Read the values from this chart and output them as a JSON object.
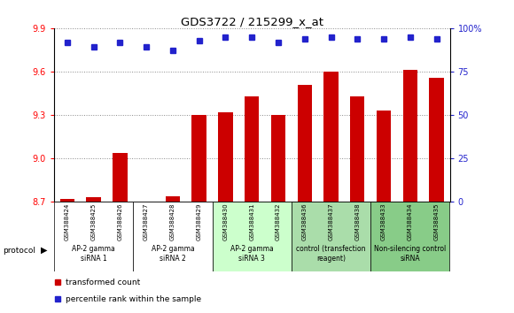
{
  "title": "GDS3722 / 215299_x_at",
  "samples": [
    "GSM388424",
    "GSM388425",
    "GSM388426",
    "GSM388427",
    "GSM388428",
    "GSM388429",
    "GSM388430",
    "GSM388431",
    "GSM388432",
    "GSM388436",
    "GSM388437",
    "GSM388438",
    "GSM388433",
    "GSM388434",
    "GSM388435"
  ],
  "bar_values": [
    8.72,
    8.73,
    9.04,
    8.7,
    8.74,
    9.3,
    9.32,
    9.43,
    9.3,
    9.51,
    9.6,
    9.43,
    9.33,
    9.61,
    9.56
  ],
  "dot_values": [
    92,
    89,
    92,
    89,
    87,
    93,
    95,
    95,
    92,
    94,
    95,
    94,
    94,
    95,
    94
  ],
  "ylim_left": [
    8.7,
    9.9
  ],
  "ylim_right": [
    0,
    100
  ],
  "yticks_left": [
    8.7,
    9.0,
    9.3,
    9.6,
    9.9
  ],
  "yticks_right": [
    0,
    25,
    50,
    75,
    100
  ],
  "bar_color": "#cc0000",
  "dot_color": "#2222cc",
  "background_color": "#ffffff",
  "groups": [
    {
      "label": "AP-2 gamma\nsiRNA 1",
      "start": 0,
      "end": 3,
      "color": "#ffffff"
    },
    {
      "label": "AP-2 gamma\nsiRNA 2",
      "start": 3,
      "end": 6,
      "color": "#ffffff"
    },
    {
      "label": "AP-2 gamma\nsiRNA 3",
      "start": 6,
      "end": 9,
      "color": "#ccffcc"
    },
    {
      "label": "control (transfection\nreagent)",
      "start": 9,
      "end": 12,
      "color": "#aaddaa"
    },
    {
      "label": "Non-silencing control\nsiRNA",
      "start": 12,
      "end": 15,
      "color": "#88cc88"
    }
  ],
  "protocol_label": "protocol",
  "legend_items": [
    {
      "color": "#cc0000",
      "label": "transformed count"
    },
    {
      "color": "#2222cc",
      "label": "percentile rank within the sample"
    }
  ],
  "grid_color": "#888888",
  "bar_width": 0.55
}
